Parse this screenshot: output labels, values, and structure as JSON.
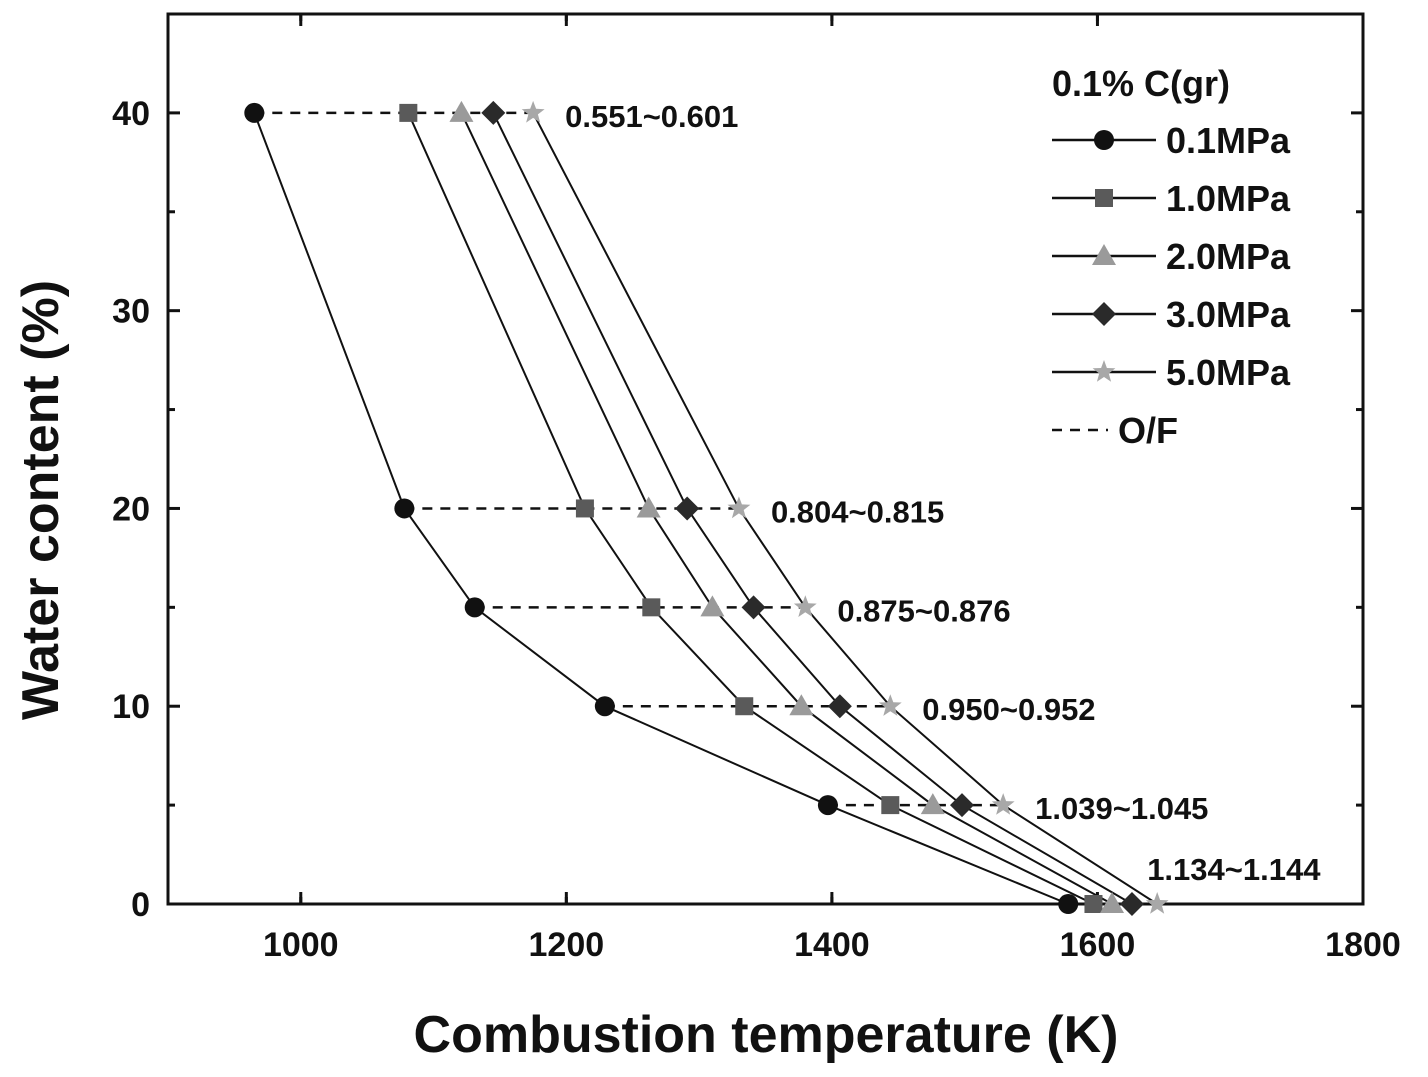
{
  "chart_data": {
    "type": "line",
    "xlabel": "Combustion temperature (K)",
    "ylabel": "Water content (%)",
    "xlim": [
      900,
      1800
    ],
    "ylim": [
      0,
      45
    ],
    "x_ticks": [
      1000,
      1200,
      1400,
      1600,
      1800
    ],
    "y_ticks": [
      0,
      10,
      20,
      30,
      40
    ],
    "grid": false,
    "legend": {
      "placement": "top-right",
      "title": "0.1% C(gr)",
      "of_label": "O/F"
    },
    "y": [
      40,
      20,
      15,
      10,
      5,
      0
    ],
    "series": [
      {
        "name": "0.1MPa",
        "marker": "circle",
        "color": "#111111",
        "x": [
          965,
          1078,
          1131,
          1229,
          1397,
          1578
        ]
      },
      {
        "name": "1.0MPa",
        "marker": "square",
        "color": "#5a5a5a",
        "x": [
          1081,
          1214,
          1264,
          1334,
          1444,
          1597
        ]
      },
      {
        "name": "2.0MPa",
        "marker": "triangle",
        "color": "#9a9a9a",
        "x": [
          1121,
          1262,
          1310,
          1377,
          1476,
          1611
        ]
      },
      {
        "name": "3.0MPa",
        "marker": "diamond",
        "color": "#2a2a2a",
        "x": [
          1145,
          1291,
          1341,
          1406,
          1498,
          1626
        ]
      },
      {
        "name": "5.0MPa",
        "marker": "star",
        "color": "#a8a8a8",
        "x": [
          1175,
          1330,
          1380,
          1444,
          1529,
          1645
        ]
      }
    ],
    "of_annotations": [
      {
        "y": 40,
        "text": "0.551~0.601"
      },
      {
        "y": 20,
        "text": "0.804~0.815"
      },
      {
        "y": 15,
        "text": "0.875~0.876"
      },
      {
        "y": 10,
        "text": "0.950~0.952"
      },
      {
        "y": 5,
        "text": "1.039~1.045"
      },
      {
        "y": 0,
        "text": "1.134~1.144"
      }
    ]
  }
}
